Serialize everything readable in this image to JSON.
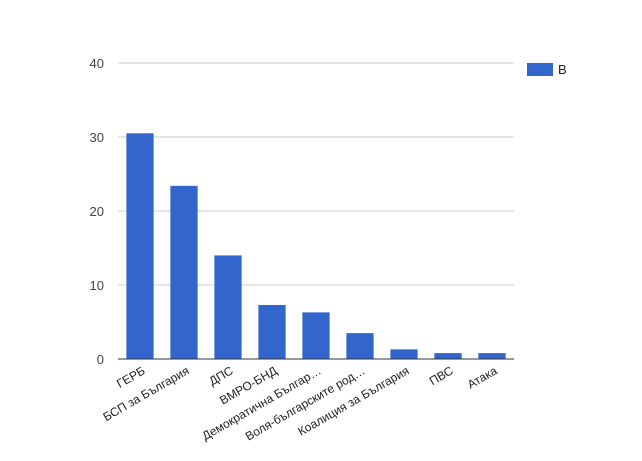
{
  "chart_data": {
    "type": "bar",
    "categories": [
      "ГЕРБ",
      "БСП за България",
      "ДПС",
      "ВМРО-БНД",
      "Демократична Българ…",
      "Воля-българските род…",
      "Коалиция за България",
      "ПВС",
      "Атака"
    ],
    "series": [
      {
        "name": "В",
        "color": "#3366cc",
        "values": [
          30.5,
          23.4,
          14.0,
          7.3,
          6.3,
          3.5,
          1.3,
          0.8,
          0.8
        ]
      }
    ],
    "ylim": [
      0,
      40
    ],
    "yticks": [
      0,
      10,
      20,
      30,
      40
    ],
    "grid": true,
    "legend": "right",
    "title": "",
    "xlabel": "",
    "ylabel": ""
  }
}
